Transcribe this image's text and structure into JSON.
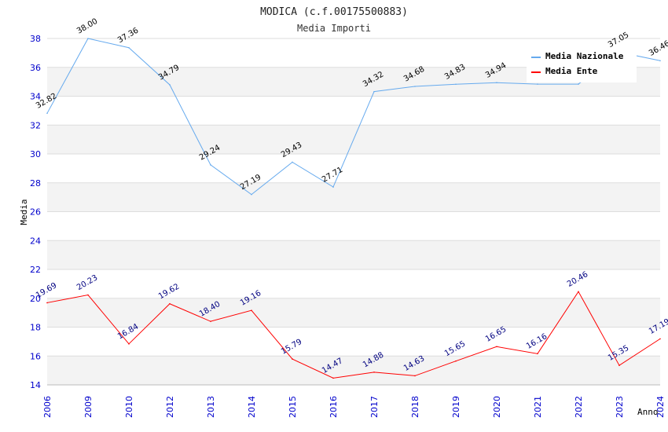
{
  "chart_data": {
    "type": "line",
    "title": "MODICA (c.f.00175500883)",
    "subtitle": "Media Importi",
    "xlabel": "Anno",
    "ylabel": "Media",
    "categories": [
      "2006",
      "2009",
      "2010",
      "2012",
      "2013",
      "2014",
      "2015",
      "2016",
      "2017",
      "2018",
      "2019",
      "2020",
      "2021",
      "2022",
      "2023",
      "2024"
    ],
    "ylim": [
      14,
      38
    ],
    "yticks": [
      14,
      16,
      18,
      20,
      22,
      24,
      26,
      28,
      30,
      32,
      34,
      36,
      38
    ],
    "grid": true,
    "legend_position": "top-right",
    "series": [
      {
        "name": "Media Nazionale",
        "color": "#66aaee",
        "values": [
          32.82,
          38.0,
          37.36,
          34.79,
          29.24,
          27.19,
          29.43,
          27.71,
          34.32,
          34.68,
          34.83,
          34.94,
          34.84,
          34.84,
          37.05,
          36.46
        ],
        "labels": [
          "32.82",
          "38.00",
          "37.36",
          "34.79",
          "29.24",
          "27.19",
          "29.43",
          "27.71",
          "34.32",
          "34.68",
          "34.83",
          "34.94",
          "",
          "",
          "37.05",
          "36.46"
        ]
      },
      {
        "name": "Media Ente",
        "color": "#ff0000",
        "values": [
          19.69,
          20.23,
          16.84,
          19.62,
          18.4,
          19.16,
          15.79,
          14.47,
          14.88,
          14.63,
          15.65,
          16.65,
          16.16,
          20.46,
          15.35,
          17.19
        ],
        "labels": [
          "19.69",
          "20.23",
          "16.84",
          "19.62",
          "18.40",
          "19.16",
          "15.79",
          "14.47",
          "14.88",
          "14.63",
          "15.65",
          "16.65",
          "16.16",
          "20.46",
          "15.35",
          "17.19"
        ]
      }
    ]
  }
}
